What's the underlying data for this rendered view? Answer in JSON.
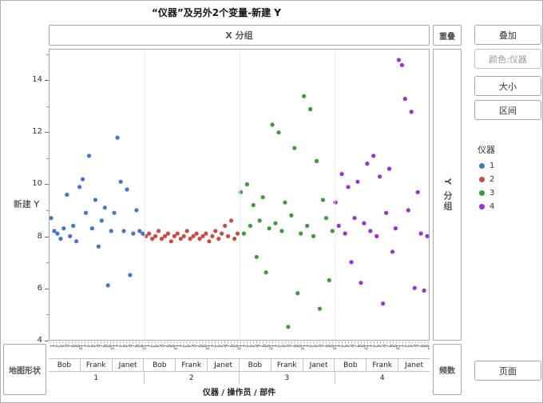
{
  "title": "“仪器”及另外2个变量-新建 Y",
  "zones": {
    "x_group": "X 分组",
    "overlap": "重叠",
    "y_group": "Y 分组",
    "map_shape": "地图形状",
    "freq": "频数"
  },
  "buttons": {
    "overlay": "叠加",
    "color": "颜色:仪器",
    "size": "大小",
    "interval": "区间",
    "page": "页面"
  },
  "legend": {
    "title": "仪器"
  },
  "axes": {
    "y_label": "新建 Y",
    "y_ticks": [
      4,
      6,
      8,
      10,
      12,
      14
    ],
    "x_label": "仪器 / 操作员 / 部件",
    "group_labels": [
      "1",
      "2",
      "3",
      "4"
    ],
    "operator_labels": [
      "Bob",
      "Frank",
      "Janet"
    ],
    "part_labels": [
      "1",
      "2",
      "3",
      "4",
      "5",
      "6",
      "7",
      "8",
      "9",
      "10"
    ]
  },
  "chart_data": {
    "type": "scatter",
    "title": "“仪器”及另外2个变量-新建 Y",
    "ylabel": "新建 Y",
    "xlabel": "仪器 / 操作员 / 部件",
    "ylim": [
      4,
      15.2
    ],
    "yticks": [
      4,
      6,
      8,
      10,
      12,
      14
    ],
    "groups": [
      "1",
      "2",
      "3",
      "4"
    ],
    "operators": [
      "Bob",
      "Frank",
      "Janet"
    ],
    "parts_per_operator": 10,
    "legend_position": "right",
    "grid": false,
    "series": [
      {
        "name": "1",
        "color": "#4377cf",
        "values": [
          8.7,
          8.2,
          8.1,
          7.9,
          8.3,
          9.6,
          8.0,
          8.4,
          7.8,
          9.9,
          10.2,
          8.9,
          11.1,
          8.3,
          9.4,
          7.6,
          8.6,
          9.1,
          6.1,
          8.2,
          8.9,
          11.8,
          10.1,
          8.2,
          9.8,
          6.5,
          8.1,
          9.0,
          8.2,
          8.1
        ]
      },
      {
        "name": "2",
        "color": "#cf4a44",
        "values": [
          8.0,
          8.1,
          7.9,
          8.0,
          8.2,
          7.9,
          8.0,
          8.1,
          7.8,
          8.0,
          8.1,
          7.9,
          8.0,
          8.2,
          7.9,
          8.0,
          8.1,
          7.9,
          8.0,
          8.1,
          7.8,
          8.0,
          8.2,
          7.9,
          8.1,
          8.4,
          8.0,
          8.6,
          7.9,
          8.1
        ]
      },
      {
        "name": "3",
        "color": "#3c9c3c",
        "values": [
          9.7,
          8.1,
          10.0,
          8.4,
          9.2,
          7.2,
          8.6,
          9.5,
          6.6,
          8.3,
          12.3,
          8.5,
          12.0,
          8.2,
          9.3,
          4.5,
          8.8,
          11.4,
          5.8,
          8.1,
          13.4,
          8.4,
          12.9,
          8.0,
          10.9,
          5.2,
          9.4,
          8.7,
          6.3,
          8.2
        ]
      },
      {
        "name": "4",
        "color": "#9e2fd4",
        "values": [
          9.3,
          8.4,
          10.4,
          8.1,
          9.9,
          7.0,
          8.7,
          10.1,
          6.2,
          8.5,
          10.8,
          8.2,
          11.1,
          8.0,
          10.3,
          5.4,
          8.9,
          10.6,
          7.4,
          8.3,
          14.8,
          14.6,
          13.3,
          9.0,
          12.8,
          6.0,
          9.7,
          8.1,
          5.9,
          8.0
        ]
      }
    ]
  }
}
